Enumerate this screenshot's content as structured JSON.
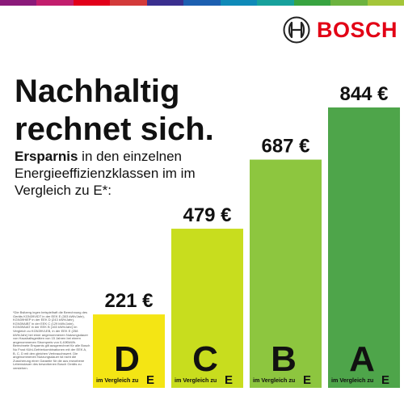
{
  "brand": {
    "name": "BOSCH",
    "color": "#e20015",
    "topbar_colors": [
      "#8b1a7a",
      "#c21e6d",
      "#e2001a",
      "#d33a3a",
      "#3a2f8f",
      "#1d5fb0",
      "#0f8ab8",
      "#17a19c",
      "#38a441",
      "#6cb33f",
      "#a4c639"
    ]
  },
  "headline": {
    "line1": "Nachhaltig",
    "line2": "rechnet sich."
  },
  "subtitle": {
    "bold": "Ersparnis",
    "rest": " in den einzelnen Energieeffizienzklassen im im Vergleich zu E*:"
  },
  "footnote": "*Die Bsitzerg ingen beispielhaft die Berechnung des Geräts KGN39VIDT in der EEK E (303 kWh/Jahr), KGN39HIEP in der EEK D (243 kWh/Jahr), KGN39AIBT in der EEK C (129 kWh/Jahr), KGN39AIAT in der EEK B (163 kWh/Jahr) im Vergleich zu KGN39VLEB, in der EEK E (258 kWh/Jahr) bei einer angenommenen Nutzungsdauer von Haushaltsgeräten von 15 Jahren bei einem angenommenen Strompreis von 0,40€/kWh. Berechnete Ersparnis gilt ausgerechnet für alle Bosch No Frost Kühl-Gefrierkombinationen mit der EEK A, B, C, D mit den gleichen Verbrauchswert. Die angenommenen Nutzungsdauer ist nicht die Zusicherung einer Garantie für die aus erworbene Lebensdauer des beworbenen Bosch Geräts zu verstehen.",
  "chart_data": {
    "type": "bar",
    "title": "Nachhaltig rechnet sich.",
    "categories": [
      "D",
      "C",
      "B",
      "A"
    ],
    "values": [
      221,
      479,
      687,
      844
    ],
    "value_labels": [
      "221 €",
      "479 €",
      "687 €",
      "844 €"
    ],
    "unit": "€",
    "compare_text": "im Vergleich zu",
    "compare_class": "E",
    "colors": [
      "#f4e514",
      "#c8dd1e",
      "#8dc63f",
      "#4ea54a"
    ],
    "ylim": [
      0,
      844
    ],
    "grid": false,
    "legend": "none"
  }
}
